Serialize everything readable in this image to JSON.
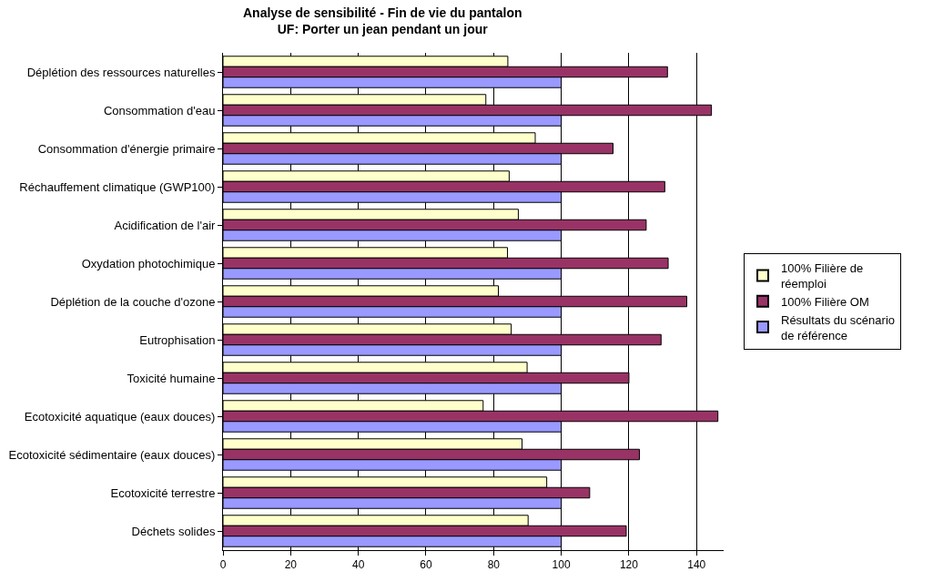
{
  "chart_data": {
    "type": "bar",
    "orientation": "horizontal",
    "title": "Analyse de sensibilité - Fin de vie du pantalon",
    "subtitle": "UF: Porter un jean pendant un jour",
    "categories": [
      "Déplétion des ressources naturelles",
      "Consommation d'eau",
      "Consommation d'énergie primaire",
      "Réchauffement climatique (GWP100)",
      "Acidification de l'air",
      "Oxydation photochimique",
      "Déplétion de la couche d'ozone",
      "Eutrophisation",
      "Toxicité humaine",
      "Ecotoxicité aquatique (eaux douces)",
      "Ecotoxicité sédimentaire (eaux douces)",
      "Ecotoxicité terrestre",
      "Déchets solides"
    ],
    "series": [
      {
        "name": "100% Filière de réemploi",
        "color": "#ffffcc",
        "values": [
          84.2,
          77.7,
          92.3,
          84.6,
          87.3,
          84.1,
          81.4,
          85.2,
          89.9,
          76.9,
          88.4,
          95.7,
          90.2
        ]
      },
      {
        "name": "100% Filière OM",
        "color": "#993366",
        "values": [
          131.4,
          144.4,
          115.3,
          130.6,
          125.1,
          131.6,
          137.1,
          129.5,
          120,
          146.3,
          123.1,
          108.4,
          119.2
        ]
      },
      {
        "name": "Résultats du scénario de référence",
        "color": "#9999ff",
        "values": [
          100,
          100,
          100,
          100,
          100,
          100,
          100,
          100,
          100,
          100,
          100,
          100,
          100
        ]
      }
    ],
    "xlim": [
      0,
      148
    ],
    "xticks": [
      0,
      20,
      40,
      60,
      80,
      100,
      120,
      140
    ],
    "grid": "x",
    "legend": "right"
  }
}
